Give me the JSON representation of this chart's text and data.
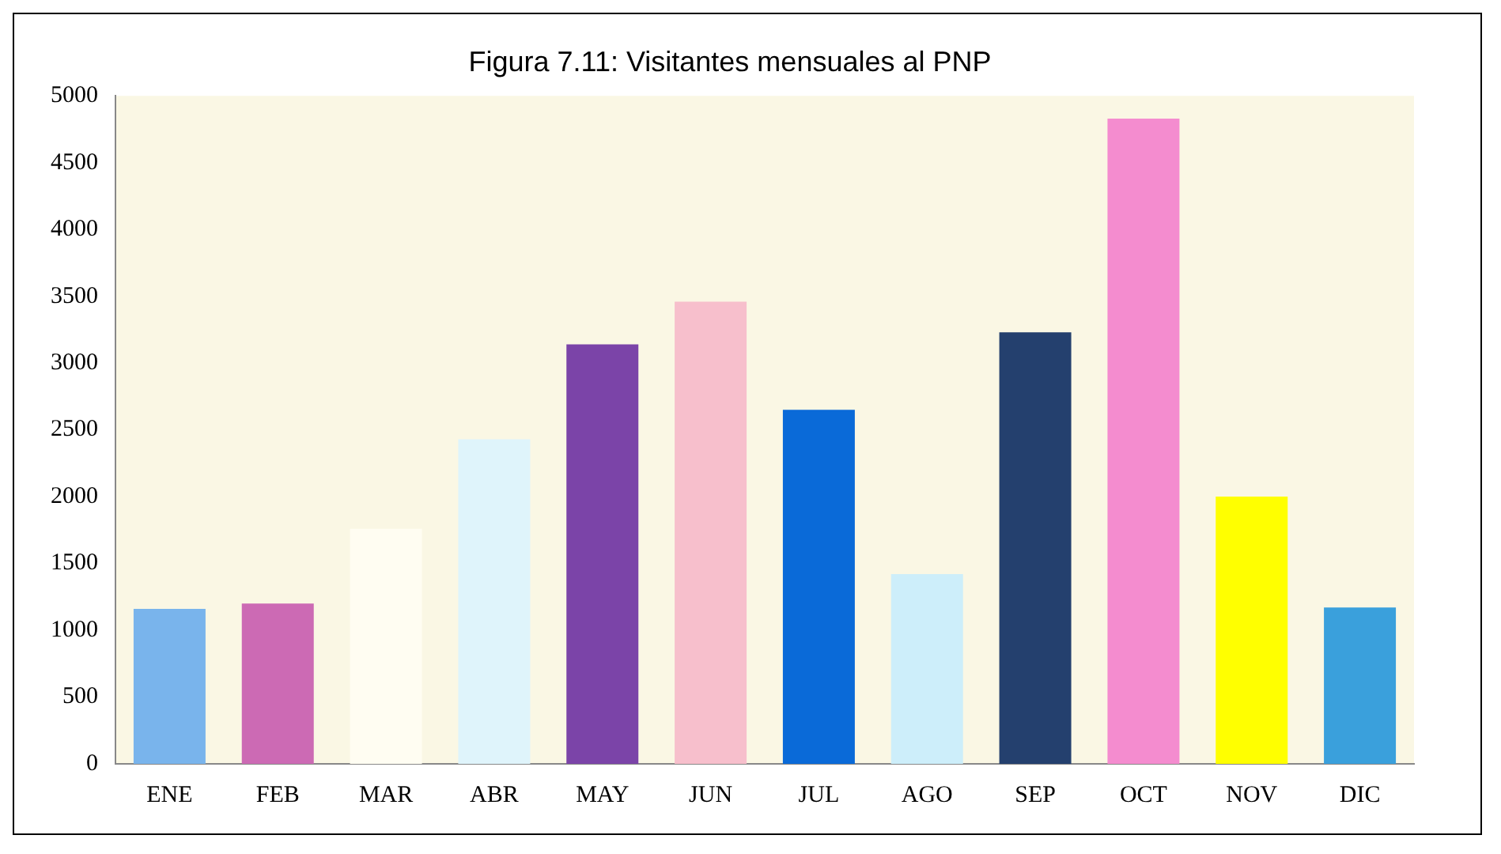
{
  "chart_data": {
    "type": "bar",
    "title": "Figura 7.11: Visitantes mensuales al PNP",
    "categories": [
      "ENE",
      "FEB",
      "MAR",
      "ABR",
      "MAY",
      "JUN",
      "JUL",
      "AGO",
      "SEP",
      "OCT",
      "NOV",
      "DIC"
    ],
    "values": [
      1160,
      1200,
      1760,
      2430,
      3140,
      3460,
      2650,
      1420,
      3230,
      4830,
      2000,
      1170
    ],
    "colors": [
      "#79b4ec",
      "#cc6ab4",
      "#fffdf2",
      "#dff4fb",
      "#7b44a8",
      "#f7bfcc",
      "#0a6ad8",
      "#cdeefa",
      "#24406e",
      "#f48ccf",
      "#ffff00",
      "#3aa0dc"
    ],
    "ylim": [
      0,
      5000
    ],
    "yticks": [
      0,
      500,
      1000,
      1500,
      2000,
      2500,
      3000,
      3500,
      4000,
      4500,
      5000
    ],
    "grid": false
  }
}
